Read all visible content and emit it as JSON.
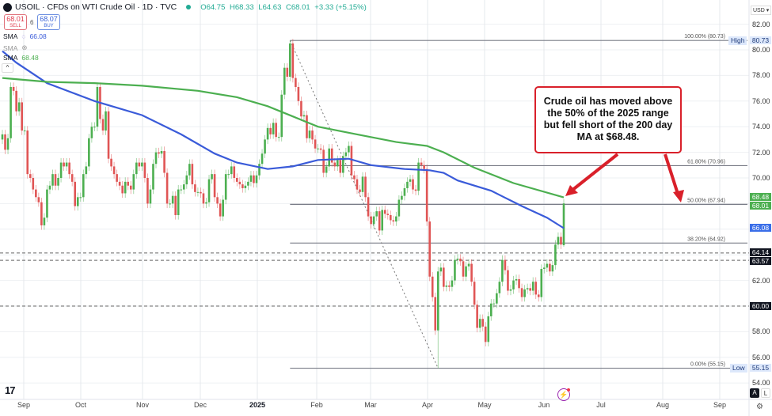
{
  "header": {
    "title": "USOIL · CFDs on WTI Crude Oil · 1D · TVC",
    "open": "O64.75",
    "high": "H68.33",
    "low": "L64.63",
    "close": "C68.01",
    "change": "+3.33 (+5.15%)",
    "sell_price": "68.01",
    "sell_label": "SELL",
    "spread": "6",
    "buy_price": "68.07",
    "buy_label": "BUY",
    "indicators": [
      {
        "label": "SMA",
        "value": "66.08",
        "color": "#3a5bd9"
      },
      {
        "label": "SMA",
        "value": "",
        "color": "#999999",
        "hidden": true
      },
      {
        "label": "SMA",
        "value": "68.48",
        "color": "#4caf50"
      }
    ],
    "collapse_icon": "chevron-up-icon"
  },
  "price_axis": {
    "currency": "USD ▾",
    "ticks": [
      "82.00",
      "80.00",
      "78.00",
      "76.00",
      "74.00",
      "72.00",
      "70.00",
      "62.00",
      "58.00",
      "56.00",
      "54.00"
    ],
    "tags": [
      {
        "value": "80.73",
        "kind": "high",
        "label": "High"
      },
      {
        "value": "68.48",
        "kind": "sma200",
        "color": "#4caf50"
      },
      {
        "value": "68.01",
        "kind": "price",
        "color": "#4caf50"
      },
      {
        "value": "66.08",
        "kind": "sma100",
        "color": "#3a6ee8"
      },
      {
        "value": "64.14",
        "kind": "level",
        "color": "#131722"
      },
      {
        "value": "63.57",
        "kind": "level",
        "color": "#131722"
      },
      {
        "value": "60.00",
        "kind": "level",
        "color": "#131722"
      },
      {
        "value": "55.15",
        "kind": "low",
        "label": "Low"
      }
    ],
    "auto_label": "A",
    "log_label": "L"
  },
  "time_axis": {
    "labels": [
      "Sep",
      "Oct",
      "Nov",
      "Dec",
      "2025",
      "Feb",
      "Mar",
      "Apr",
      "May",
      "Jun",
      "Jul",
      "Aug",
      "Sep"
    ]
  },
  "annotation": {
    "text": "Crude oil has moved above the 50% of the 2025 range but fell short of the 200 day MA at $68.48.",
    "color": "#d9202a"
  },
  "chart_data": {
    "type": "candlestick",
    "symbol": "USOIL",
    "interval": "1D",
    "ylim": [
      53.5,
      83
    ],
    "grid": true,
    "colors": {
      "up": "#4caf50",
      "down": "#e05555"
    },
    "first_open": 73.0,
    "closes": [
      73.4,
      72.2,
      73.1,
      77.1,
      76.8,
      75.2,
      75.9,
      73.7,
      73.7,
      70.3,
      70.0,
      69.1,
      68.5,
      68.1,
      66.3,
      66.9,
      69.1,
      69.4,
      70.3,
      69.4,
      70.0,
      71.2,
      70.9,
      71.2,
      70.3,
      69.7,
      67.8,
      68.5,
      68.5,
      70.3,
      70.9,
      73.1,
      74.0,
      74.0,
      77.1,
      74.6,
      73.7,
      75.2,
      71.5,
      70.9,
      70.3,
      69.7,
      69.4,
      68.8,
      69.7,
      69.4,
      69.1,
      70.3,
      71.2,
      70.9,
      71.2,
      70.0,
      68.0,
      69.1,
      71.1,
      72.0,
      71.9,
      72.1,
      70.4,
      68.0,
      68.0,
      68.6,
      67.1,
      69.1,
      69.1,
      69.5,
      70.2,
      71.1,
      69.5,
      68.9,
      68.9,
      68.8,
      68.0,
      68.1,
      69.9,
      70.3,
      68.5,
      68.0,
      67.0,
      68.3,
      70.3,
      70.3,
      70.9,
      70.0,
      69.7,
      69.5,
      69.2,
      69.4,
      69.7,
      70.2,
      69.6,
      70.2,
      71.1,
      71.9,
      73.0,
      73.9,
      73.4,
      74.3,
      73.2,
      73.2,
      76.5,
      78.6,
      77.9,
      80.5,
      77.8,
      77.1,
      76.0,
      74.8,
      74.9,
      73.1,
      73.7,
      73.0,
      72.3,
      72.3,
      72.2,
      70.4,
      70.9,
      72.3,
      71.2,
      70.9,
      71.4,
      70.4,
      71.7,
      72.0,
      72.5,
      70.2,
      69.9,
      69.1,
      68.9,
      70.1,
      68.5,
      67.0,
      66.4,
      67.0,
      67.4,
      65.9,
      67.5,
      67.2,
      67.1,
      66.7,
      66.6,
      67.0,
      68.3,
      68.6,
      69.2,
      69.7,
      69.9,
      69.1,
      69.0,
      71.2,
      71.0,
      70.7,
      66.6,
      62.3,
      60.7,
      58.1,
      62.7,
      63.0,
      61.5,
      61.6,
      61.5,
      62.0,
      63.6,
      63.7,
      63.5,
      62.3,
      63.1,
      63.3,
      61.9,
      60.1,
      58.3,
      59.0,
      58.4,
      57.2,
      59.2,
      60.2,
      60.2,
      61.0,
      61.9,
      63.6,
      62.8,
      61.2,
      61.3,
      62.0,
      62.1,
      61.4,
      60.7,
      61.3,
      61.4,
      61.2,
      61.9,
      60.9,
      60.7,
      62.9,
      63.0,
      63.3,
      62.7,
      63.2,
      64.8,
      65.4,
      64.8,
      68.01
    ],
    "last_bar": {
      "open": 64.75,
      "high": 68.33,
      "low": 64.63,
      "close": 68.01
    },
    "sma_series": [
      {
        "name": "SMA",
        "value_label": "66.08",
        "color": "#3a5bd9",
        "points": [
          [
            0,
            79.9
          ],
          [
            5,
            79.0
          ],
          [
            16,
            77.4
          ],
          [
            33,
            76.0
          ],
          [
            50,
            74.9
          ],
          [
            64,
            73.4
          ],
          [
            76,
            71.9
          ],
          [
            84,
            71.2
          ],
          [
            95,
            70.7
          ],
          [
            104,
            70.9
          ],
          [
            113,
            71.4
          ],
          [
            124,
            71.5
          ],
          [
            132,
            71.0
          ],
          [
            144,
            70.7
          ],
          [
            153,
            70.6
          ],
          [
            158,
            70.4
          ],
          [
            163,
            69.8
          ],
          [
            175,
            69.0
          ],
          [
            186,
            67.8
          ],
          [
            195,
            66.9
          ],
          [
            201,
            66.08
          ]
        ]
      },
      {
        "name": "SMA",
        "value_label": "68.48",
        "color": "#4caf50",
        "points": [
          [
            0,
            77.8
          ],
          [
            16,
            77.5
          ],
          [
            33,
            77.4
          ],
          [
            50,
            77.2
          ],
          [
            70,
            76.8
          ],
          [
            84,
            76.3
          ],
          [
            95,
            75.6
          ],
          [
            104,
            74.8
          ],
          [
            113,
            74.0
          ],
          [
            127,
            73.4
          ],
          [
            141,
            72.8
          ],
          [
            152,
            72.5
          ],
          [
            158,
            72.0
          ],
          [
            169,
            70.8
          ],
          [
            183,
            69.6
          ],
          [
            201,
            68.48
          ]
        ]
      }
    ],
    "fibonacci": {
      "high": 80.73,
      "high_bar": 103,
      "low": 55.15,
      "low_bar": 156,
      "levels": [
        {
          "ratio": 1.0,
          "price": 80.73,
          "label": "100.00% (80.73)"
        },
        {
          "ratio": 0.618,
          "price": 70.96,
          "label": "61.80% (70.96)"
        },
        {
          "ratio": 0.5,
          "price": 67.94,
          "label": "50.00% (67.94)"
        },
        {
          "ratio": 0.382,
          "price": 64.92,
          "label": "38.20% (64.92)"
        },
        {
          "ratio": 0.0,
          "price": 55.15,
          "label": "0.00% (55.15)"
        }
      ]
    },
    "horizontal_levels": [
      64.14,
      63.57,
      60.0
    ]
  }
}
